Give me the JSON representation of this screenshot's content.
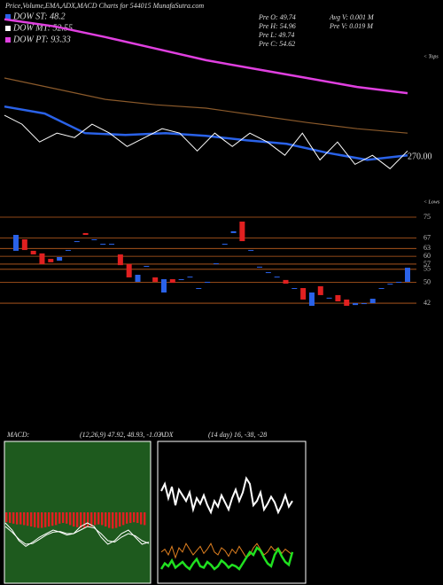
{
  "header": {
    "title": "Price,Volume,EMA,ADX,MACD Charts for 544015 MunafaSutra.com",
    "legend": [
      {
        "text": "DOW ST: 48.2",
        "color": "#2a62e8"
      },
      {
        "text": "DOW MT: 52.55",
        "color": "#ffffff"
      },
      {
        "text": "DOW PT: 93.33",
        "color": "#e040e0"
      }
    ],
    "info": [
      "Pre  O: 49.74",
      "Pre  H: 54.96",
      "Pre  L: 49.74",
      "Pre  C: 54.62",
      "Avg V: 0.001 M",
      "Pre  V: 0.019 M"
    ]
  },
  "price_chart": {
    "type": "line",
    "ylim": [
      13,
      148
    ],
    "last_price": "270.00",
    "tops_label": "< Tops",
    "lows_label": "< Lows",
    "series": [
      {
        "color": "#e040e0",
        "width": 2.5,
        "values": [
          146.9,
          141.7,
          134,
          125.6,
          117.2,
          110.7,
          104.3,
          97.8,
          93.3
        ]
      },
      {
        "color": "#8b5a2b",
        "width": 1.2,
        "values": [
          104.3,
          96.6,
          88.8,
          84.9,
          82.4,
          77.2,
          72.0,
          67.5,
          64.3
        ]
      },
      {
        "color": "#2a62e8",
        "width": 2.5,
        "values": [
          83.6,
          78.5,
          64.3,
          63.0,
          64.3,
          62.4,
          59.1,
          56.5,
          50.1,
          44.9,
          48.2
        ]
      },
      {
        "color": "#ffffff",
        "width": 1,
        "values": [
          77.2,
          70.8,
          57.9,
          64.3,
          61.1,
          70.8,
          64.3,
          54.6,
          61.1,
          67.5,
          64.3,
          51.4,
          64.3,
          54.6,
          64.3,
          57.9,
          48.2,
          64.3,
          44.9,
          57.9,
          41.7,
          48.2,
          38.5,
          51.4
        ]
      }
    ]
  },
  "candle_chart": {
    "type": "candlestick",
    "ylim": [
      41,
      75
    ],
    "yticks": [
      75,
      67,
      63,
      60,
      57,
      55,
      50,
      42
    ],
    "up_color": "#2a62e8",
    "down_color": "#e02020",
    "open": [
      62.1,
      66.5,
      62.1,
      61.1,
      59.0,
      58.3,
      62.4,
      65.8,
      68.9,
      66.5,
      64.8,
      64.8,
      60.7,
      57.0,
      50.2,
      56.3,
      51.9,
      46.1,
      51.2,
      51.2,
      52.2,
      47.8,
      50.2,
      57.3,
      64.8,
      68.9,
      73.3,
      62.4,
      56.0,
      53.9,
      52.2,
      50.9,
      47.8,
      47.8,
      41.0,
      48.5,
      44.1,
      45.1,
      43.4,
      41.3,
      42.0,
      42.0,
      47.8,
      49.5,
      50.2,
      50.2
    ],
    "close": [
      68.2,
      62.4,
      60.7,
      57.0,
      57.7,
      59.7,
      62.4,
      65.8,
      68.2,
      66.5,
      64.8,
      64.8,
      56.6,
      51.9,
      52.9,
      56.3,
      50.2,
      51.2,
      49.8,
      51.2,
      52.2,
      47.8,
      50.2,
      57.3,
      64.8,
      69.6,
      65.8,
      62.4,
      56.0,
      53.9,
      52.2,
      49.5,
      47.8,
      43.4,
      46.1,
      45.1,
      44.1,
      42.7,
      41.0,
      42.0,
      42.0,
      43.7,
      47.8,
      49.5,
      50.2,
      55.6
    ]
  },
  "macd_chart": {
    "type": "bar",
    "label": "MACD:",
    "params": "(12,26,9) 47.92, 48.93, -1.03",
    "ylim": [
      -100,
      100
    ],
    "bar_color": "#e02020",
    "values": [
      -14,
      -15,
      -16,
      -17,
      -17,
      -18,
      -19,
      -20,
      -21,
      -22,
      -22,
      -21,
      -20,
      -19,
      -18,
      -16,
      -15,
      -16,
      -18,
      -20,
      -21,
      -22,
      -22,
      -21,
      -20,
      -18,
      -17,
      -18,
      -20,
      -22,
      -23,
      -22,
      -20,
      -18,
      -16,
      -15,
      -14,
      -15,
      -17,
      -18
    ],
    "series": [
      {
        "color": "#ffffff",
        "values": [
          -15,
          -25,
          -40,
          -48,
          -42,
          -35,
          -30,
          -25,
          -28,
          -32,
          -30,
          -20,
          -15,
          -20,
          -35,
          -45,
          -40,
          -30,
          -25,
          -35,
          -45,
          -42
        ]
      },
      {
        "color": "#ffffff",
        "values": [
          -20,
          -28,
          -38,
          -45,
          -44,
          -38,
          -32,
          -28,
          -27,
          -30,
          -30,
          -25,
          -20,
          -22,
          -30,
          -40,
          -42,
          -35,
          -30,
          -33,
          -40,
          -44
        ]
      }
    ]
  },
  "adx_chart": {
    "type": "line",
    "label": "ADX",
    "params": "(14 day) 16, -38, -28",
    "ylim": [
      0,
      100
    ],
    "series": [
      {
        "color": "#ffffff",
        "values": [
          65,
          70,
          60,
          68,
          55,
          66,
          62,
          58,
          64,
          52,
          60,
          56,
          62,
          55,
          50,
          58,
          54,
          62,
          57,
          52,
          60,
          66,
          58,
          64,
          74,
          70,
          55,
          58,
          64,
          52,
          56,
          61,
          57,
          50,
          55,
          62,
          54,
          58
        ]
      },
      {
        "color": "#e08020",
        "values": [
          22,
          24,
          20,
          26,
          18,
          25,
          22,
          28,
          24,
          20,
          23,
          26,
          21,
          24,
          28,
          22,
          20,
          25,
          23,
          19,
          24,
          21,
          26,
          22,
          18,
          20,
          25,
          28,
          24,
          20,
          22,
          26,
          23,
          25,
          21,
          24,
          22,
          20
        ]
      },
      {
        "color": "#20e020",
        "values": [
          10,
          14,
          12,
          16,
          11,
          13,
          15,
          12,
          10,
          14,
          17,
          12,
          11,
          15,
          13,
          10,
          12,
          16,
          14,
          11,
          13,
          12,
          10,
          14,
          18,
          22,
          20,
          25,
          23,
          18,
          14,
          12,
          20,
          24,
          19,
          15,
          13,
          22
        ]
      }
    ]
  }
}
